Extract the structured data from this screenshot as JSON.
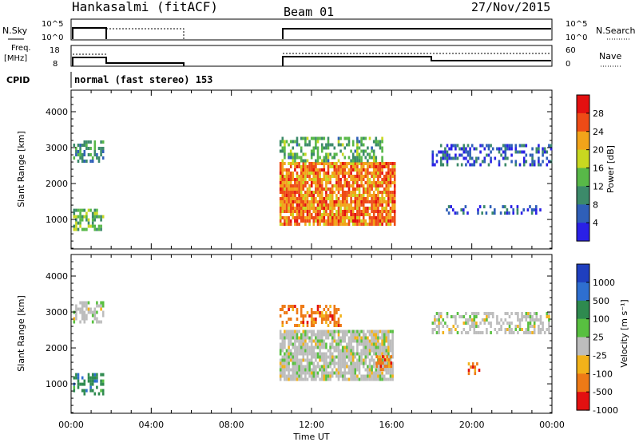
{
  "header": {
    "station": "Hankasalmi (fitACF)",
    "beam": "Beam 01",
    "date": "27/Nov/2015"
  },
  "strips": {
    "nsky": {
      "label": "N.Sky",
      "ticks": [
        "10^5",
        "10^0"
      ]
    },
    "nsearch": {
      "label": "N.Search",
      "ticks": [
        "10^5",
        "10^0"
      ]
    },
    "freq": {
      "label_line1": "Freq.",
      "label_line2": "[MHz]",
      "ticks": [
        "18",
        "8"
      ]
    },
    "nave": {
      "label": "Nave",
      "ticks": [
        "60",
        "0"
      ]
    },
    "cpid": {
      "label": "CPID",
      "text": "normal (fast stereo) 153"
    }
  },
  "panels": {
    "power": {
      "ylabel": "Slant Range [km]",
      "cbar_label": "Power [dB]"
    },
    "velocity": {
      "ylabel": "Slant Range [km]",
      "cbar_label": "Velocity [m s⁻¹]"
    }
  },
  "xaxis": {
    "label": "Time UT"
  },
  "chart_data": [
    {
      "type": "heatmap",
      "name": "power",
      "x_range_hours": [
        0,
        24
      ],
      "x_ticks": [
        "00:00",
        "04:00",
        "08:00",
        "12:00",
        "16:00",
        "20:00",
        "00:00"
      ],
      "y_range_km": [
        180,
        4600
      ],
      "y_ticks": [
        1000,
        2000,
        3000,
        4000
      ],
      "colorbar_ticks": [
        "4",
        "8",
        "12",
        "16",
        "20",
        "24",
        "28"
      ],
      "colorbar_range": [
        0,
        32
      ],
      "colors": [
        "#2a20e6",
        "#2f5fb8",
        "#3c8a6a",
        "#58b848",
        "#c8d820",
        "#f2a41a",
        "#ee4b16",
        "#e31010"
      ],
      "regions": [
        {
          "t0": 0.1,
          "t1": 1.6,
          "r0": 2600,
          "r1": 3200,
          "level": 10,
          "density": 0.55
        },
        {
          "t0": 0.1,
          "t1": 1.6,
          "r0": 700,
          "r1": 1300,
          "level": 14,
          "density": 0.65
        },
        {
          "t0": 10.4,
          "t1": 16.2,
          "r0": 900,
          "r1": 2600,
          "level": 24,
          "density": 0.85
        },
        {
          "t0": 10.4,
          "t1": 15.5,
          "r0": 2600,
          "r1": 3300,
          "level": 12,
          "density": 0.5
        },
        {
          "t0": 18.0,
          "t1": 24.0,
          "r0": 2500,
          "r1": 3100,
          "level": 6,
          "density": 0.4
        },
        {
          "t0": 18.5,
          "t1": 23.5,
          "r0": 1200,
          "r1": 1400,
          "level": 5,
          "density": 0.3
        }
      ]
    },
    {
      "type": "heatmap",
      "name": "velocity",
      "x_range_hours": [
        0,
        24
      ],
      "x_ticks": [
        "00:00",
        "04:00",
        "08:00",
        "12:00",
        "16:00",
        "20:00",
        "00:00"
      ],
      "y_range_km": [
        180,
        4600
      ],
      "y_ticks": [
        1000,
        2000,
        3000,
        4000
      ],
      "colorbar_ticks": [
        "1000",
        "500",
        "100",
        "25",
        "-25",
        "-100",
        "-500",
        "-1000"
      ],
      "colors": [
        "#1f3fbf",
        "#2e6fd0",
        "#2e8a4f",
        "#58c040",
        "#bdbdbd",
        "#f2b21a",
        "#ee7a16",
        "#e31010"
      ],
      "regions": [
        {
          "t0": 0.1,
          "t1": 1.6,
          "r0": 2700,
          "r1": 3300,
          "class": 4,
          "density": 0.5
        },
        {
          "t0": 0.1,
          "t1": 1.6,
          "r0": 700,
          "r1": 1300,
          "class": 2,
          "density": 0.6
        },
        {
          "t0": 10.4,
          "t1": 16.0,
          "r0": 1100,
          "r1": 2500,
          "class": 4,
          "density": 0.85
        },
        {
          "t0": 15.2,
          "t1": 16.0,
          "r0": 1400,
          "r1": 1800,
          "class": 6,
          "density": 0.8
        },
        {
          "t0": 10.4,
          "t1": 13.5,
          "r0": 2600,
          "r1": 3200,
          "class": 6,
          "density": 0.45
        },
        {
          "t0": 18.0,
          "t1": 24.0,
          "r0": 2400,
          "r1": 3000,
          "class": 4,
          "density": 0.45
        },
        {
          "t0": 19.8,
          "t1": 20.4,
          "r0": 1300,
          "r1": 1600,
          "class": 6,
          "density": 0.6
        }
      ]
    }
  ]
}
